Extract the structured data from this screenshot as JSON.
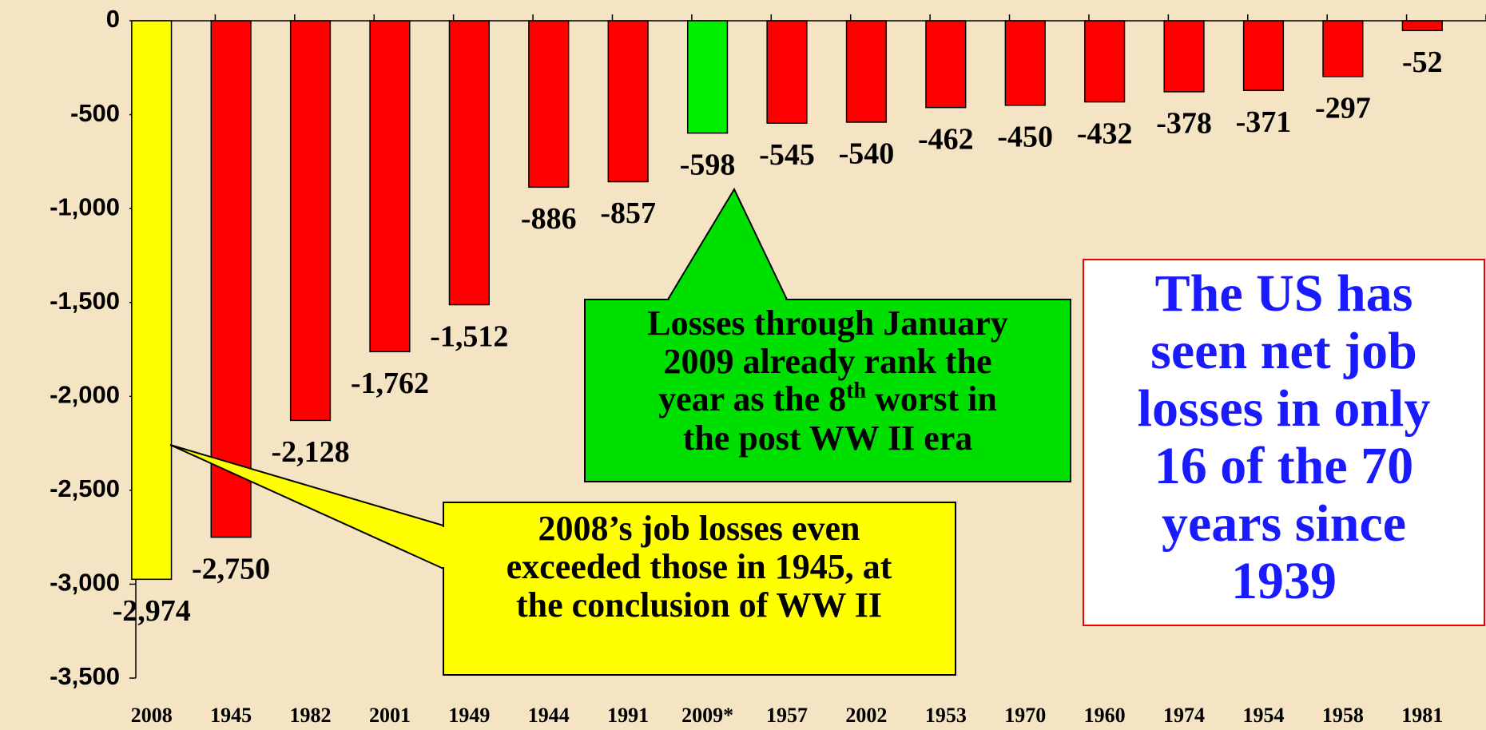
{
  "chart_data": {
    "type": "bar",
    "categories": [
      "2008",
      "1945",
      "1982",
      "2001",
      "1949",
      "1944",
      "1991",
      "2009*",
      "1957",
      "2002",
      "1953",
      "1970",
      "1960",
      "1974",
      "1954",
      "1958",
      "1981"
    ],
    "values": [
      -2974,
      -2750,
      -2128,
      -1762,
      -1512,
      -886,
      -857,
      -598,
      -545,
      -540,
      -462,
      -450,
      -432,
      -378,
      -371,
      -297,
      -52
    ],
    "value_labels": [
      "-2,974",
      "-2,750",
      "-2,128",
      "-1,762",
      "-1,512",
      "-886",
      "-857",
      "-598",
      "-545",
      "-540",
      "-462",
      "-450",
      "-432",
      "-378",
      "-371",
      "-297",
      "-52"
    ],
    "colors": [
      "#ffff00",
      "#ff0000",
      "#ff0000",
      "#ff0000",
      "#ff0000",
      "#ff0000",
      "#ff0000",
      "#00ee00",
      "#ff0000",
      "#ff0000",
      "#ff0000",
      "#ff0000",
      "#ff0000",
      "#ff0000",
      "#ff0000",
      "#ff0000",
      "#ff0000"
    ],
    "ylim": [
      -3500,
      0
    ],
    "yticks": [
      0,
      -500,
      {
        "value": -1000,
        "label": "-1,000"
      },
      {
        "value": -1500,
        "label": "-1,500"
      },
      {
        "value": -2000,
        "label": "-2,000"
      },
      {
        "value": -2500,
        "label": "-2,500"
      },
      {
        "value": -3000,
        "label": "-3,000"
      },
      {
        "value": -3500,
        "label": "-3,500"
      }
    ],
    "annotations": {
      "green_box": {
        "line1": "Losses through January",
        "line2": "2009 already rank the",
        "line3_a": "year as the 8",
        "line3_sup": "th",
        "line3_b": " worst in",
        "line4": "the post WW II era"
      },
      "yellow_box": [
        "2008’s job losses even",
        "exceeded those in 1945, at",
        "the conclusion of WW II"
      ],
      "white_box": [
        "The US has",
        "seen net job",
        "losses in only",
        "16 of the 70",
        "years since",
        "1939"
      ]
    }
  }
}
